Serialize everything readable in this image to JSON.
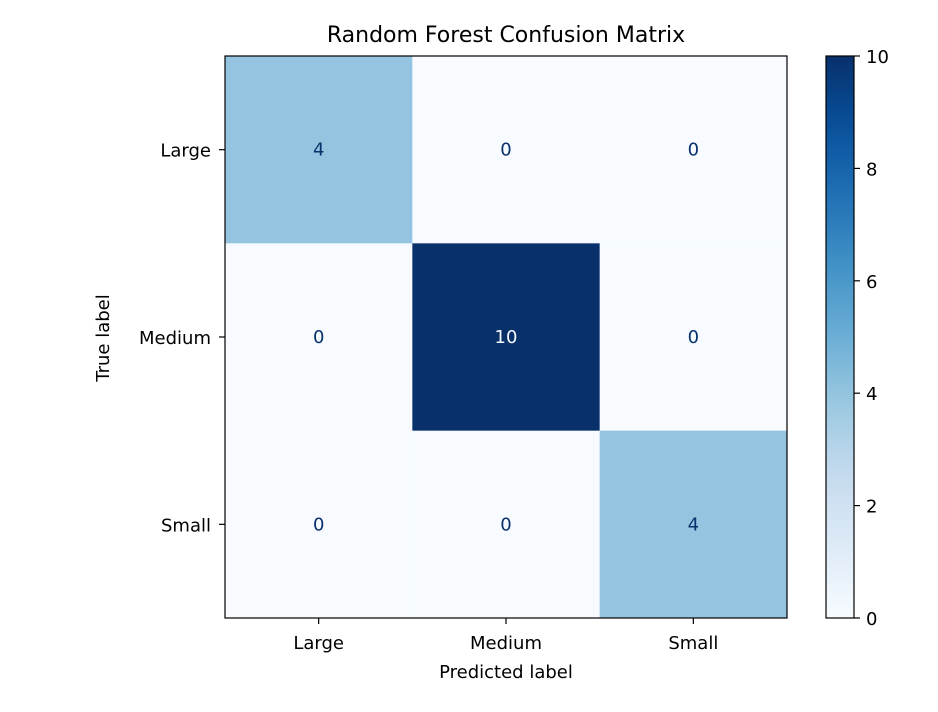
{
  "chart_data": {
    "type": "heatmap",
    "title": "Random Forest Confusion Matrix",
    "xlabel": "Predicted label",
    "ylabel": "True label",
    "x_categories": [
      "Large",
      "Medium",
      "Small"
    ],
    "y_categories": [
      "Large",
      "Medium",
      "Small"
    ],
    "values": [
      [
        4,
        0,
        0
      ],
      [
        0,
        10,
        0
      ],
      [
        0,
        0,
        4
      ]
    ],
    "colormap": "Blues",
    "colorbar": {
      "min": 0,
      "max": 10,
      "ticks": [
        0,
        2,
        4,
        6,
        8,
        10
      ]
    },
    "grid": false,
    "legend": "colorbar right"
  },
  "colors": {
    "low": "#f7fbff",
    "high": "#08306b",
    "dark_text": "#08306b",
    "light_text": "#f7fbff",
    "axis": "#000000"
  }
}
